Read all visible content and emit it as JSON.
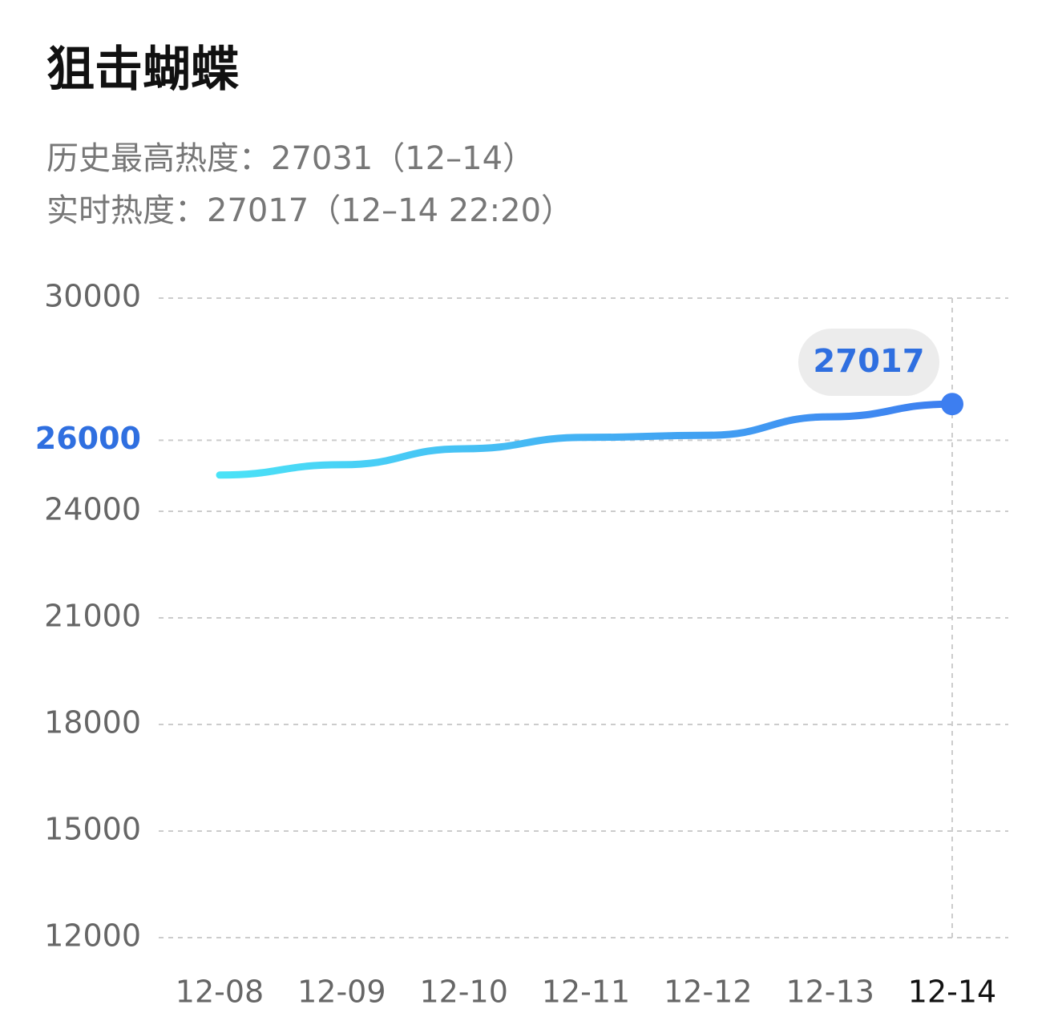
{
  "header": {
    "title": "狙击蝴蝶",
    "peak": "历史最高热度：27031（12–14）",
    "realtime": "实时热度：27017（12–14 22:20）"
  },
  "chart_data": {
    "type": "line",
    "categories": [
      "12-08",
      "12-09",
      "12-10",
      "12-11",
      "12-12",
      "12-13",
      "12-14"
    ],
    "values": [
      25020,
      25310,
      25760,
      26080,
      26140,
      26660,
      27017
    ],
    "color_start": "#4be3f7",
    "color_end": "#3d7ef0",
    "ylim": [
      12000,
      30000
    ],
    "yticks": [
      12000,
      15000,
      18000,
      21000,
      24000,
      26000,
      30000
    ],
    "highlight_ytick": 26000,
    "highlight_color": "#2f6fe0",
    "grid": true
  }
}
